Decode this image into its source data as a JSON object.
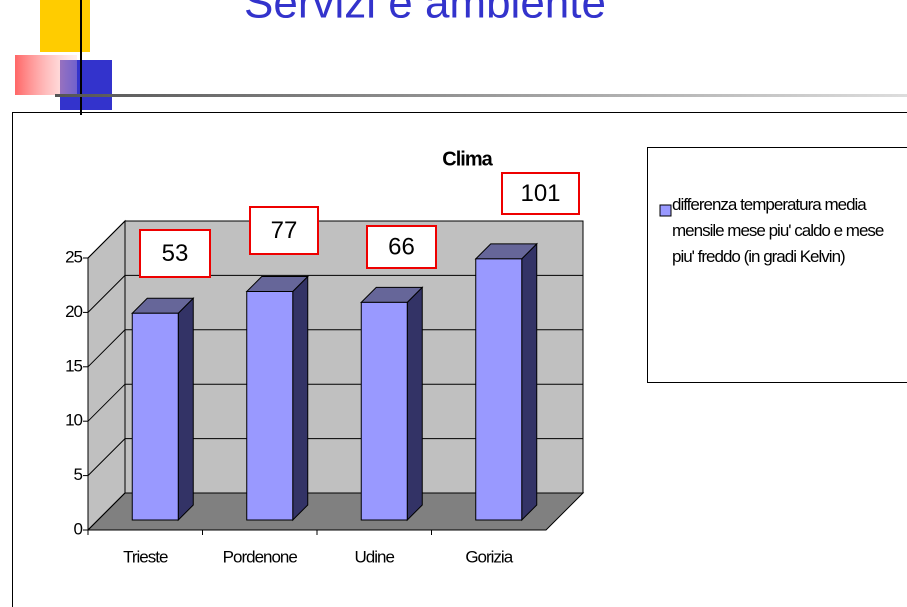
{
  "slide_title": "Servizi e ambiente",
  "chart_data": {
    "type": "bar3d",
    "title": "Clima",
    "categories": [
      "Trieste",
      "Pordenone",
      "Udine",
      "Gorizia"
    ],
    "series": [
      {
        "name": "differenza temperatura media mensile mese piu' caldo e mese piu' freddo (in gradi Kelvin)",
        "color": "#9999ff",
        "values": [
          19,
          21,
          20,
          24
        ]
      }
    ],
    "ylim": [
      0,
      25
    ],
    "yticks": [
      0,
      5,
      10,
      15,
      20,
      25
    ],
    "grid": true,
    "legend": "right",
    "annotations": [
      53,
      77,
      66,
      101
    ]
  }
}
